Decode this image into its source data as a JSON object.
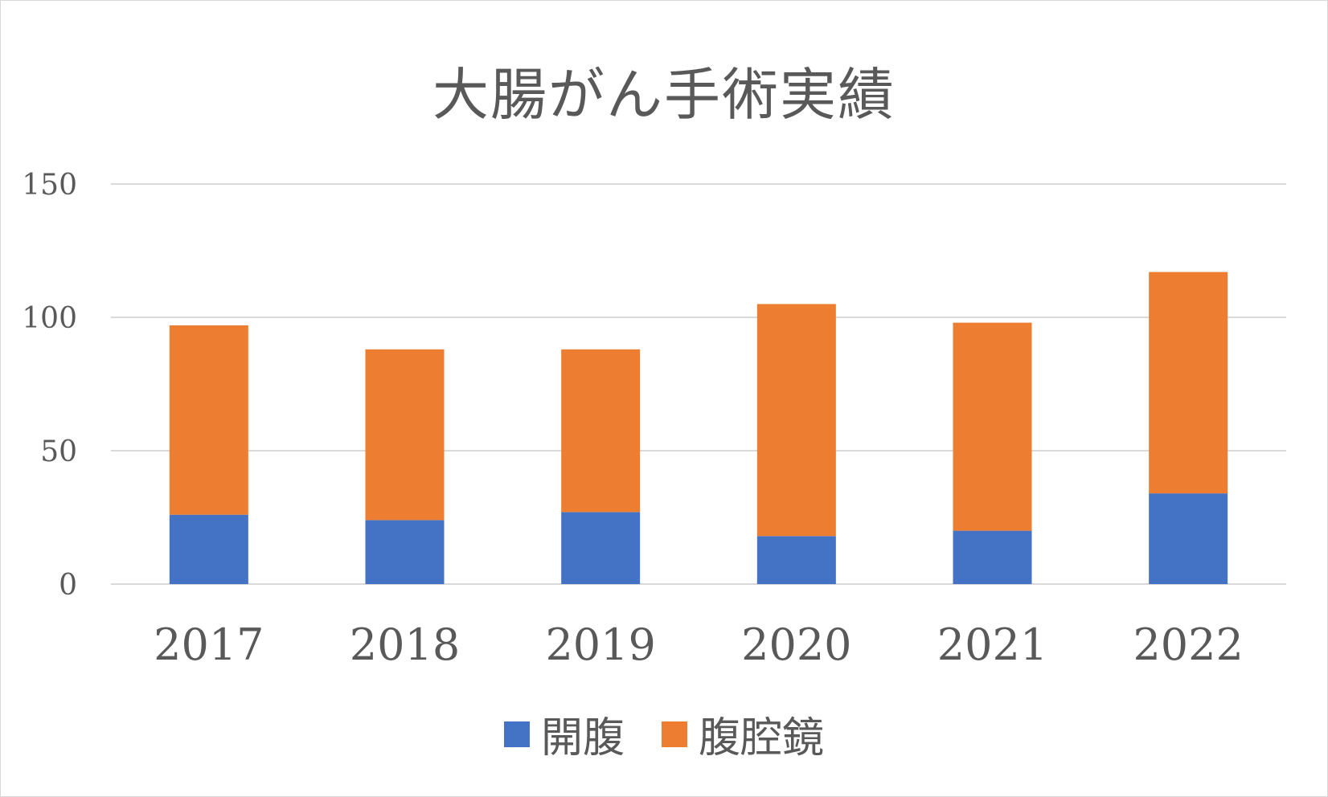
{
  "chart_data": {
    "type": "bar",
    "stacked": true,
    "title": "大腸がん手術実績",
    "categories": [
      "2017",
      "2018",
      "2019",
      "2020",
      "2021",
      "2022"
    ],
    "series": [
      {
        "name": "開腹",
        "color": "#4472C4",
        "values": [
          26,
          24,
          27,
          18,
          20,
          34
        ]
      },
      {
        "name": "腹腔鏡",
        "color": "#ED7D31",
        "values": [
          71,
          64,
          61,
          87,
          78,
          83
        ]
      }
    ],
    "ylim": [
      0,
      150
    ],
    "yticks": [
      0,
      50,
      100,
      150
    ],
    "grid": true,
    "legend": "bottom"
  }
}
